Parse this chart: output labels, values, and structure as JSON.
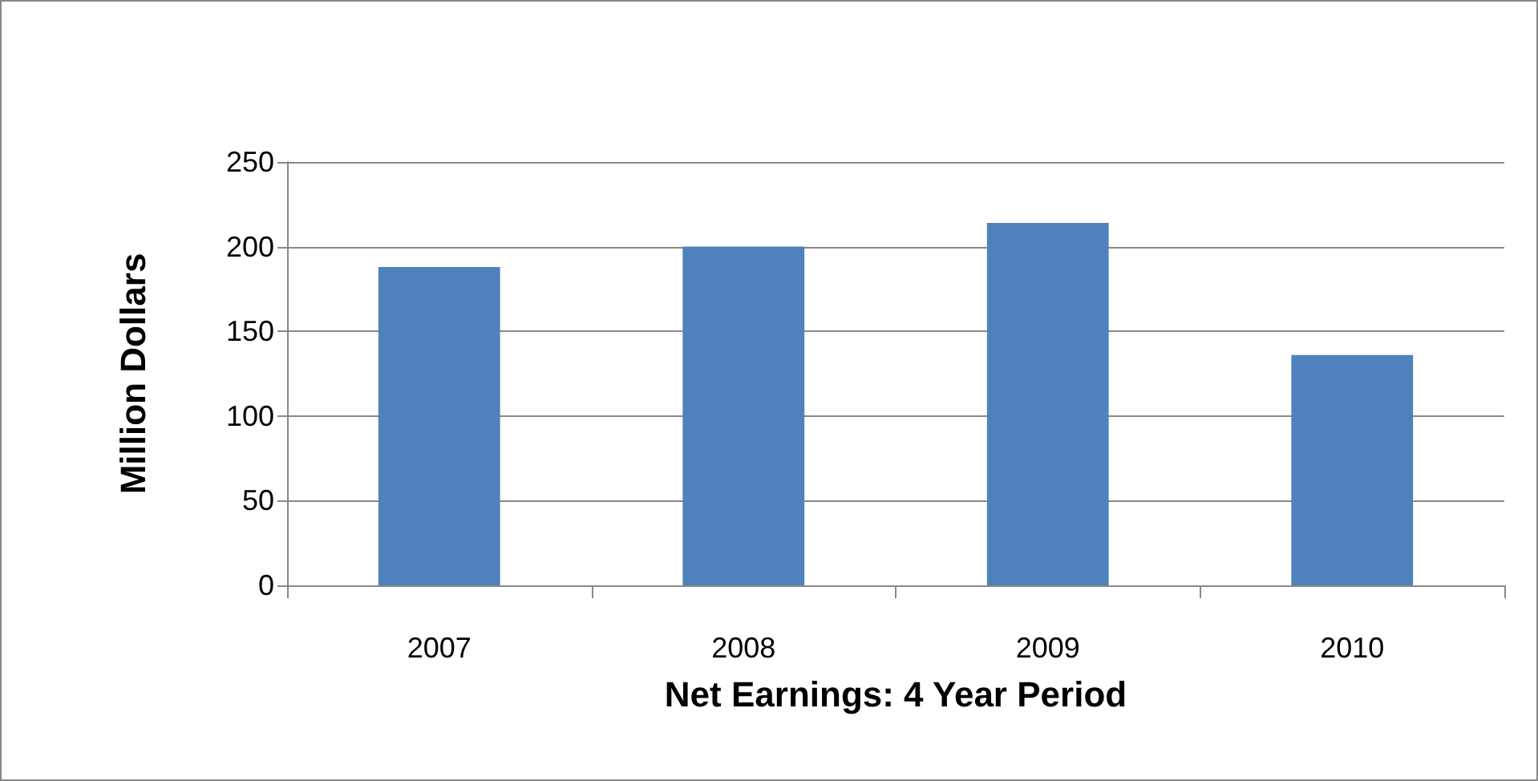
{
  "chart_data": {
    "type": "bar",
    "xlabel": "Net Earnings: 4 Year Period",
    "ylabel": "Million Dollars",
    "categories": [
      "2007",
      "2008",
      "2009",
      "2010"
    ],
    "values": [
      188,
      200,
      214,
      136
    ],
    "color": "#4f81bd",
    "ylim": [
      0,
      250
    ],
    "yticks": [
      0,
      50,
      100,
      150,
      200,
      250
    ],
    "grid": "y"
  }
}
